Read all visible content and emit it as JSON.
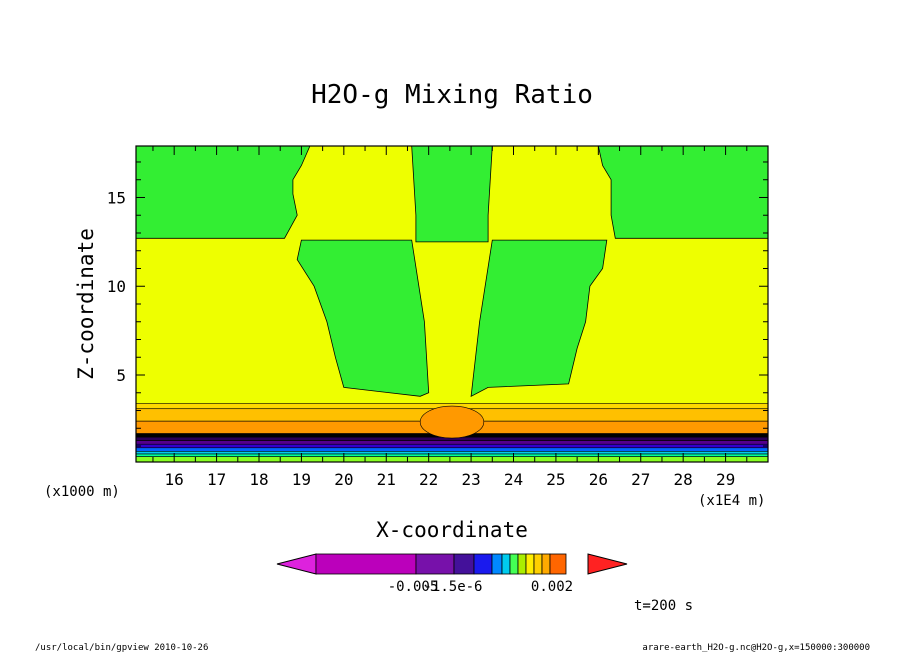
{
  "chart_data": {
    "type": "contour",
    "title": "H2O-g Mixing Ratio",
    "xlabel": "X-coordinate",
    "ylabel": "Z-coordinate",
    "x_unit_label": "(x1E4 m)",
    "y_unit_label": "(x1000 m)",
    "xlim": [
      15.1,
      30.0
    ],
    "ylim": [
      0.1,
      17.9
    ],
    "x_ticks": [
      16,
      17,
      18,
      19,
      20,
      21,
      22,
      23,
      24,
      25,
      26,
      27,
      28,
      29
    ],
    "y_ticks": [
      5,
      10,
      15
    ],
    "regions": [
      {
        "name": "top-left-green",
        "color": "#33ee33",
        "points": [
          [
            15.1,
            17.9
          ],
          [
            19.2,
            17.9
          ],
          [
            19.0,
            16.8
          ],
          [
            18.8,
            16.0
          ],
          [
            18.8,
            15.2
          ],
          [
            18.9,
            14.0
          ],
          [
            18.6,
            12.7
          ],
          [
            15.1,
            12.7
          ]
        ]
      },
      {
        "name": "top-center-green",
        "color": "#33ee33",
        "points": [
          [
            21.6,
            17.9
          ],
          [
            23.5,
            17.9
          ],
          [
            23.4,
            14.0
          ],
          [
            23.4,
            12.5
          ],
          [
            21.7,
            12.5
          ],
          [
            21.7,
            14.0
          ]
        ]
      },
      {
        "name": "top-right-green",
        "color": "#33ee33",
        "points": [
          [
            26.0,
            17.9
          ],
          [
            30.0,
            17.9
          ],
          [
            30.0,
            12.7
          ],
          [
            26.4,
            12.7
          ],
          [
            26.3,
            14.0
          ],
          [
            26.3,
            15.2
          ],
          [
            26.3,
            16.0
          ],
          [
            26.1,
            16.8
          ]
        ]
      },
      {
        "name": "mid-left-green",
        "color": "#33ee33",
        "points": [
          [
            19.0,
            12.6
          ],
          [
            21.6,
            12.6
          ],
          [
            21.9,
            8.0
          ],
          [
            22.0,
            4.0
          ],
          [
            21.8,
            3.8
          ],
          [
            20.0,
            4.3
          ],
          [
            19.8,
            6.0
          ],
          [
            19.6,
            8.0
          ],
          [
            19.3,
            10.0
          ],
          [
            18.9,
            11.5
          ]
        ]
      },
      {
        "name": "mid-right-green",
        "color": "#33ee33",
        "points": [
          [
            23.5,
            12.6
          ],
          [
            26.2,
            12.6
          ],
          [
            26.1,
            11.0
          ],
          [
            25.8,
            10.0
          ],
          [
            25.7,
            8.0
          ],
          [
            25.5,
            6.5
          ],
          [
            25.3,
            4.5
          ],
          [
            23.4,
            4.3
          ],
          [
            23.0,
            3.8
          ],
          [
            23.2,
            8.0
          ]
        ]
      }
    ],
    "bands": [
      {
        "z0": 3.4,
        "z1": 3.1,
        "color": "#ffd800"
      },
      {
        "z0": 3.1,
        "z1": 2.4,
        "color": "#ffc000"
      },
      {
        "z0": 2.4,
        "z1": 1.7,
        "color": "#ff9900"
      },
      {
        "z0": 1.7,
        "z1": 1.5,
        "color": "#000000"
      },
      {
        "z0": 1.5,
        "z1": 1.3,
        "color": "#2a0055"
      },
      {
        "z0": 1.3,
        "z1": 1.1,
        "color": "#55008c"
      },
      {
        "z0": 1.1,
        "z1": 0.9,
        "color": "#3300cc"
      },
      {
        "z0": 0.9,
        "z1": 0.7,
        "color": "#0066ff"
      },
      {
        "z0": 0.7,
        "z1": 0.55,
        "color": "#00ccee"
      },
      {
        "z0": 0.55,
        "z1": 0.4,
        "color": "#00ff99"
      },
      {
        "z0": 0.4,
        "z1": 0.1,
        "color": "#88ff22"
      }
    ],
    "colorbar": {
      "colors": [
        "#dd22dd",
        "#bb00bb",
        "#7711aa",
        "#44119a",
        "#1a1aee",
        "#0088ff",
        "#00ccee",
        "#44ff55",
        "#aaee00",
        "#ffee00",
        "#ffd000",
        "#ffaa00",
        "#ff6600",
        "#ff2222"
      ],
      "labels": [
        "-0.005",
        "-1.5e-6",
        "0.002"
      ]
    },
    "time_label": "t=200 s"
  },
  "footer": {
    "left": "/usr/local/bin/gpview  2010-10-26",
    "right": "arare-earth_H2O-g.nc@H2O-g,x=150000:300000"
  }
}
